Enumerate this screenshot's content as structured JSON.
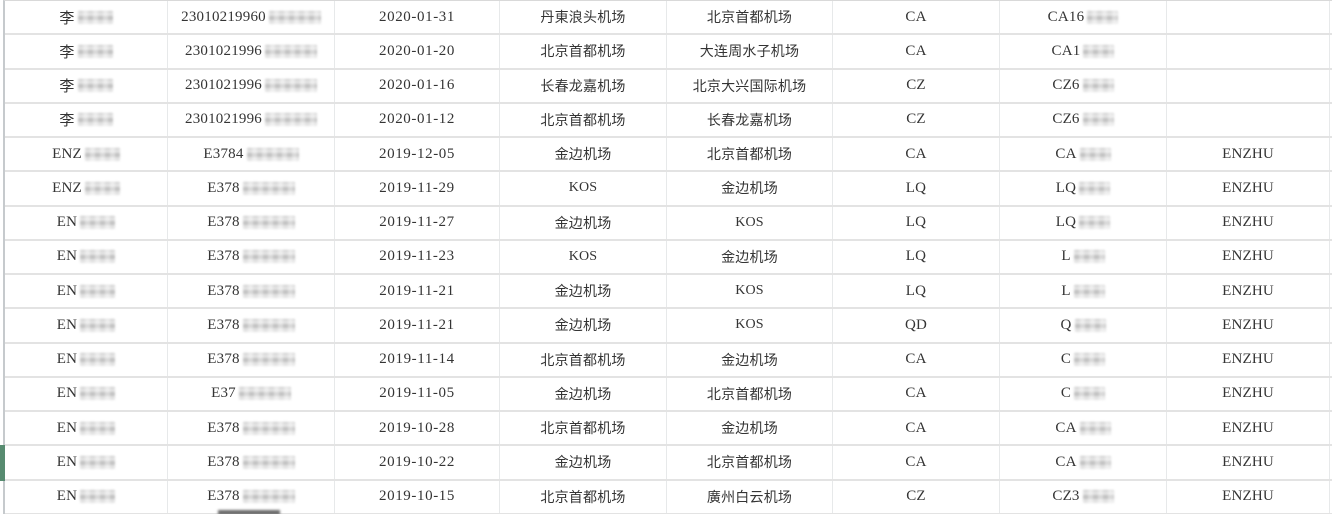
{
  "colors": {
    "accent_green": "#578b70",
    "grid_line": "#e7e9ea",
    "row_border": "#e3e3e3",
    "left_border": "#c6cacd",
    "text_color": "#343434"
  },
  "table": {
    "highlighted_row_index": 13,
    "rows": [
      {
        "name_visible": "李",
        "name_redacted": true,
        "id_visible": "23010219960",
        "id_redacted": true,
        "date": "2020-01-31",
        "from": "丹東浪头机场",
        "to": "北京首都机场",
        "airline": "CA",
        "flight_visible": "CA16",
        "flight_redacted": true,
        "agent": ""
      },
      {
        "name_visible": "李",
        "name_redacted": true,
        "id_visible": "2301021996",
        "id_redacted": true,
        "date": "2020-01-20",
        "from": "北京首都机场",
        "to": "大连周水子机场",
        "airline": "CA",
        "flight_visible": "CA1",
        "flight_redacted": true,
        "agent": ""
      },
      {
        "name_visible": "李",
        "name_redacted": true,
        "id_visible": "2301021996",
        "id_redacted": true,
        "date": "2020-01-16",
        "from": "长春龙嘉机场",
        "to": "北京大兴国际机场",
        "airline": "CZ",
        "flight_visible": "CZ6",
        "flight_redacted": true,
        "agent": ""
      },
      {
        "name_visible": "李",
        "name_redacted": true,
        "id_visible": "2301021996",
        "id_redacted": true,
        "date": "2020-01-12",
        "from": "北京首都机场",
        "to": "长春龙嘉机场",
        "airline": "CZ",
        "flight_visible": "CZ6",
        "flight_redacted": true,
        "agent": ""
      },
      {
        "name_visible": "ENZ",
        "name_redacted": true,
        "id_visible": "E3784",
        "id_redacted": true,
        "date": "2019-12-05",
        "from": "金边机场",
        "to": "北京首都机场",
        "airline": "CA",
        "flight_visible": "CA",
        "flight_redacted": true,
        "agent": "ENZHU"
      },
      {
        "name_visible": "ENZ",
        "name_redacted": true,
        "id_visible": "E378",
        "id_redacted": true,
        "date": "2019-11-29",
        "from": "KOS",
        "to": "金边机场",
        "airline": "LQ",
        "flight_visible": "LQ",
        "flight_redacted": true,
        "agent": "ENZHU"
      },
      {
        "name_visible": "EN",
        "name_redacted": true,
        "id_visible": "E378",
        "id_redacted": true,
        "date": "2019-11-27",
        "from": "金边机场",
        "to": "KOS",
        "airline": "LQ",
        "flight_visible": "LQ",
        "flight_redacted": true,
        "agent": "ENZHU"
      },
      {
        "name_visible": "EN",
        "name_redacted": true,
        "id_visible": "E378",
        "id_redacted": true,
        "date": "2019-11-23",
        "from": "KOS",
        "to": "金边机场",
        "airline": "LQ",
        "flight_visible": "L",
        "flight_redacted": true,
        "agent": "ENZHU"
      },
      {
        "name_visible": "EN",
        "name_redacted": true,
        "id_visible": "E378",
        "id_redacted": true,
        "date": "2019-11-21",
        "from": "金边机场",
        "to": "KOS",
        "airline": "LQ",
        "flight_visible": "L",
        "flight_redacted": true,
        "agent": "ENZHU"
      },
      {
        "name_visible": "EN",
        "name_redacted": true,
        "id_visible": "E378",
        "id_redacted": true,
        "date": "2019-11-21",
        "from": "金边机场",
        "to": "KOS",
        "airline": "QD",
        "flight_visible": "Q",
        "flight_redacted": true,
        "agent": "ENZHU"
      },
      {
        "name_visible": "EN",
        "name_redacted": true,
        "id_visible": "E378",
        "id_redacted": true,
        "date": "2019-11-14",
        "from": "北京首都机场",
        "to": "金边机场",
        "airline": "CA",
        "flight_visible": "C",
        "flight_redacted": true,
        "agent": "ENZHU"
      },
      {
        "name_visible": "EN",
        "name_redacted": true,
        "id_visible": "E37",
        "id_redacted": true,
        "date": "2019-11-05",
        "from": "金边机场",
        "to": "北京首都机场",
        "airline": "CA",
        "flight_visible": "C",
        "flight_redacted": true,
        "agent": "ENZHU"
      },
      {
        "name_visible": "EN",
        "name_redacted": true,
        "id_visible": "E378",
        "id_redacted": true,
        "date": "2019-10-28",
        "from": "北京首都机场",
        "to": "金边机场",
        "airline": "CA",
        "flight_visible": "CA",
        "flight_redacted": true,
        "agent": "ENZHU"
      },
      {
        "name_visible": "EN",
        "name_redacted": true,
        "id_visible": "E378",
        "id_redacted": true,
        "date": "2019-10-22",
        "from": "金边机场",
        "to": "北京首都机场",
        "airline": "CA",
        "flight_visible": "CA",
        "flight_redacted": true,
        "agent": "ENZHU"
      },
      {
        "name_visible": "EN",
        "name_redacted": true,
        "id_visible": "E378",
        "id_redacted": true,
        "date": "2019-10-15",
        "from": "北京首都机场",
        "to": "廣州白云机场",
        "airline": "CZ",
        "flight_visible": "CZ3",
        "flight_redacted": true,
        "agent": "ENZHU"
      }
    ],
    "partial_next_row": {
      "redaction_in_id_column": true
    }
  }
}
